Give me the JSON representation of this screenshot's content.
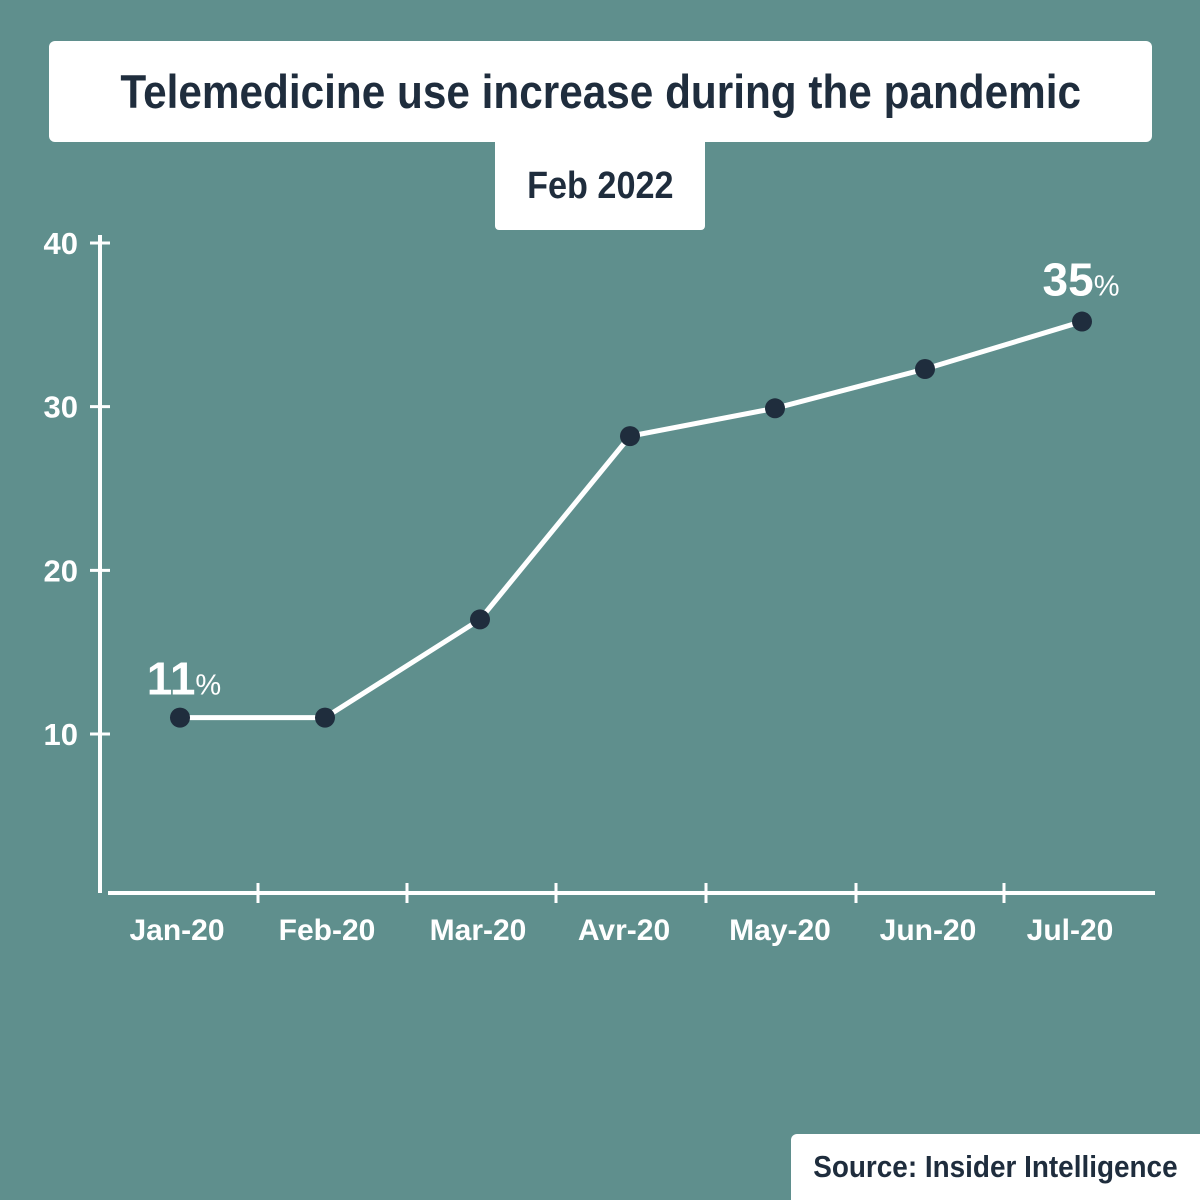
{
  "chart_data": {
    "type": "line",
    "title": "Telemedicine use increase during the pandemic",
    "subtitle": "Feb 2022",
    "source": "Source: Insider Intelligence",
    "categories": [
      "Jan-20",
      "Feb-20",
      "Mar-20",
      "Avr-20",
      "May-20",
      "Jun-20",
      "Jul-20"
    ],
    "series": [
      {
        "values": [
          11,
          11,
          17,
          28.2,
          29.9,
          32.3,
          35.2
        ]
      }
    ],
    "yticks": [
      "10",
      "20",
      "30",
      "40"
    ],
    "ylim": [
      0,
      40
    ],
    "annotations": [
      {
        "index": 0,
        "value": "11",
        "unit": "%"
      },
      {
        "index": 6,
        "value": "35",
        "unit": "%"
      }
    ],
    "grid": false,
    "colors": {
      "background": "#5f8f8d",
      "line": "#ffffff",
      "point": "#1f2d3d",
      "text_dark": "#1f2d3d"
    }
  }
}
